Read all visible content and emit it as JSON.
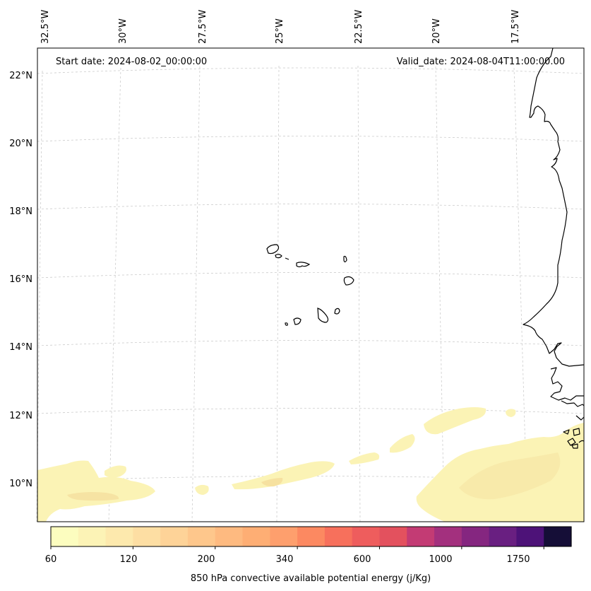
{
  "map": {
    "start_date": "Start date: 2024-08-02_00:00:00",
    "valid_date": "Valid_date: 2024-08-04T11:00:00.00",
    "lon_labels": [
      "32.5°W",
      "30°W",
      "27.5°W",
      "25°W",
      "22.5°W",
      "20°W",
      "17.5°W"
    ],
    "lat_labels": [
      "22°N",
      "20°N",
      "18°N",
      "16°N",
      "14°N",
      "12°N",
      "10°N"
    ],
    "field_name": "850 hPa convective available potential energy (j/Kg)"
  },
  "colorbar": {
    "tick_labels": [
      "60",
      "120",
      "200",
      "340",
      "600",
      "1000",
      "1750"
    ],
    "colors": [
      "#fcfdbf",
      "#fcf3b6",
      "#fde9ad",
      "#fddea3",
      "#fed398",
      "#fec78c",
      "#feba80",
      "#feae74",
      "#fe9f6d",
      "#fc8961",
      "#f7705c",
      "#ee5d5d",
      "#e3515e",
      "#c33b74",
      "#a3307e",
      "#852680",
      "#691f81",
      "#4d1278",
      "#150e37"
    ]
  },
  "overlay_colors": {
    "coast": "#000000",
    "grid": "#c8c8c8",
    "cape_light": "#fbf3b5",
    "cape_mid": "#f9e7a8"
  }
}
